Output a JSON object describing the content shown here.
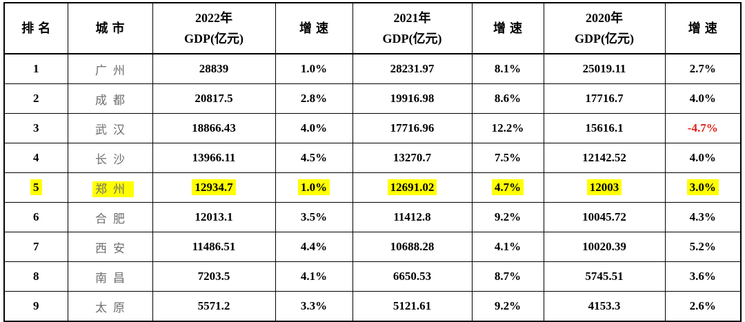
{
  "colors": {
    "background": "#ffffff",
    "border": "#000000",
    "header_text": "#000000",
    "value_text": "#000000",
    "city_text": "#6e6e6e",
    "highlight": "#ffff00",
    "negative": "#de2118"
  },
  "chart_data": {
    "type": "table",
    "layout": {
      "grid": "on",
      "header_rows": 1,
      "data_rows": 9,
      "highlight_style": "yellow-text-highlight"
    },
    "highlighted_city": "郑州",
    "columns": [
      {
        "key": "rank",
        "label": "排名",
        "sub": ""
      },
      {
        "key": "city",
        "label": "城市",
        "sub": ""
      },
      {
        "key": "gdp2022",
        "label": "2022年",
        "sub": "GDP(亿元)"
      },
      {
        "key": "growth2022",
        "label": "增速",
        "sub": ""
      },
      {
        "key": "gdp2021",
        "label": "2021年",
        "sub": "GDP(亿元)"
      },
      {
        "key": "growth2021",
        "label": "增速",
        "sub": ""
      },
      {
        "key": "gdp2020",
        "label": "2020年",
        "sub": "GDP(亿元)"
      },
      {
        "key": "growth2020",
        "label": "增速",
        "sub": ""
      }
    ],
    "rows": [
      {
        "rank": "1",
        "city": "广州",
        "values": [
          "28839",
          "1.0%",
          "28231.97",
          "8.1%",
          "25019.11",
          "2.7%"
        ],
        "highlighted": false
      },
      {
        "rank": "2",
        "city": "成都",
        "values": [
          "20817.5",
          "2.8%",
          "19916.98",
          "8.6%",
          "17716.7",
          "4.0%"
        ],
        "highlighted": false
      },
      {
        "rank": "3",
        "city": "武汉",
        "values": [
          "18866.43",
          "4.0%",
          "17716.96",
          "12.2%",
          "15616.1",
          "-4.7%"
        ],
        "highlighted": false
      },
      {
        "rank": "4",
        "city": "长沙",
        "values": [
          "13966.11",
          "4.5%",
          "13270.7",
          "7.5%",
          "12142.52",
          "4.0%"
        ],
        "highlighted": false
      },
      {
        "rank": "5",
        "city": "郑州",
        "values": [
          "12934.7",
          "1.0%",
          "12691.02",
          "4.7%",
          "12003",
          "3.0%"
        ],
        "highlighted": true
      },
      {
        "rank": "6",
        "city": "合肥",
        "values": [
          "12013.1",
          "3.5%",
          "11412.8",
          "9.2%",
          "10045.72",
          "4.3%"
        ],
        "highlighted": false
      },
      {
        "rank": "7",
        "city": "西安",
        "values": [
          "11486.51",
          "4.4%",
          "10688.28",
          "4.1%",
          "10020.39",
          "5.2%"
        ],
        "highlighted": false
      },
      {
        "rank": "8",
        "city": "南昌",
        "values": [
          "7203.5",
          "4.1%",
          "6650.53",
          "8.7%",
          "5745.51",
          "3.6%"
        ],
        "highlighted": false
      },
      {
        "rank": "9",
        "city": "太原",
        "values": [
          "5571.2",
          "3.3%",
          "5121.61",
          "9.2%",
          "4153.3",
          "2.6%"
        ],
        "highlighted": false
      }
    ]
  }
}
